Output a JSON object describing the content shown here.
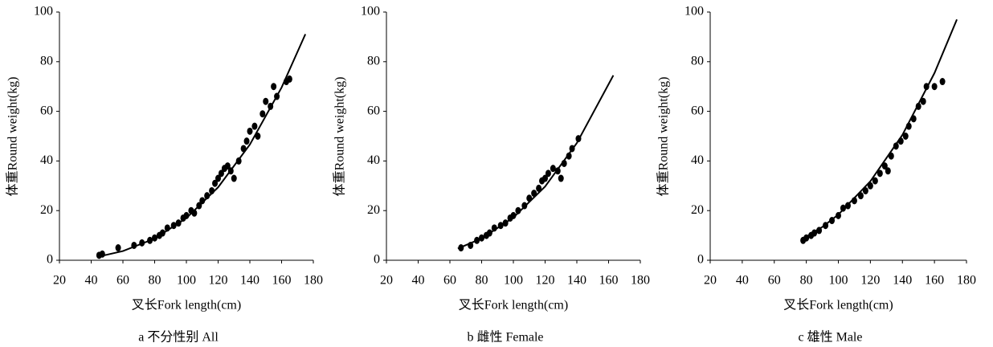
{
  "chart_data": [
    {
      "type": "scatter",
      "title": "a 不分性别 All",
      "xlabel": "叉长Fork length(cm)",
      "ylabel": "体重Round weight(kg)",
      "color": "#000000",
      "xlim": [
        20,
        180
      ],
      "xticks": [
        20,
        40,
        60,
        80,
        100,
        120,
        140,
        160,
        180
      ],
      "ylim": [
        0,
        100
      ],
      "yticks": [
        0,
        20,
        40,
        60,
        80,
        100
      ],
      "points": {
        "x": [
          45,
          47,
          57,
          67,
          72,
          77,
          80,
          83,
          85,
          88,
          92,
          95,
          98,
          100,
          103,
          105,
          108,
          110,
          113,
          116,
          118,
          120,
          122,
          124,
          126,
          128,
          130,
          133,
          136,
          138,
          140,
          143,
          145,
          148,
          150,
          153,
          155,
          157,
          163,
          165
        ],
        "y": [
          2,
          2.5,
          5,
          6,
          7,
          8,
          9,
          10,
          11,
          13,
          14,
          15,
          17,
          18,
          20,
          19,
          22,
          24,
          26,
          28,
          31,
          33,
          35,
          37,
          38,
          36,
          33,
          40,
          45,
          48,
          52,
          54,
          50,
          59,
          64,
          62,
          70,
          66,
          72,
          73
        ]
      },
      "curve": {
        "x": [
          45,
          60,
          80,
          100,
          120,
          140,
          160,
          175
        ],
        "y": [
          1.5,
          3.7,
          8.7,
          17,
          29.4,
          46.6,
          69.6,
          91.1
        ]
      }
    },
    {
      "type": "scatter",
      "title": "b 雌性 Female",
      "xlabel": "叉长Fork length(cm)",
      "ylabel": "体重Round weight(kg)",
      "color": "#000000",
      "xlim": [
        20,
        180
      ],
      "xticks": [
        20,
        40,
        60,
        80,
        100,
        120,
        140,
        160,
        180
      ],
      "ylim": [
        0,
        100
      ],
      "yticks": [
        0,
        20,
        40,
        60,
        80,
        100
      ],
      "points": {
        "x": [
          67,
          73,
          77,
          80,
          83,
          85,
          88,
          92,
          95,
          98,
          100,
          103,
          107,
          110,
          113,
          116,
          118,
          120,
          122,
          125,
          128,
          130,
          132,
          135,
          137,
          141
        ],
        "y": [
          5,
          6,
          8,
          9,
          10,
          11,
          13,
          14,
          15,
          17,
          18,
          20,
          22,
          25,
          27,
          29,
          32,
          33,
          35,
          37,
          36,
          33,
          39,
          42,
          45,
          49
        ]
      },
      "curve": {
        "x": [
          65,
          80,
          100,
          120,
          140,
          163
        ],
        "y": [
          4.7,
          8.8,
          17.2,
          29.7,
          47.2,
          74.5
        ]
      }
    },
    {
      "type": "scatter",
      "title": "c 雄性 Male",
      "xlabel": "叉长Fork length(cm)",
      "ylabel": "体重Round weight(kg)",
      "color": "#000000",
      "xlim": [
        20,
        180
      ],
      "xticks": [
        20,
        40,
        60,
        80,
        100,
        120,
        140,
        160,
        180
      ],
      "ylim": [
        0,
        100
      ],
      "yticks": [
        0,
        20,
        40,
        60,
        80,
        100
      ],
      "points": {
        "x": [
          78,
          80,
          83,
          85,
          88,
          92,
          96,
          100,
          103,
          106,
          110,
          114,
          117,
          120,
          123,
          126,
          129,
          131,
          133,
          136,
          139,
          142,
          144,
          147,
          150,
          153,
          155,
          160,
          165
        ],
        "y": [
          8,
          9,
          10,
          11,
          12,
          14,
          16,
          18,
          21,
          22,
          24,
          26,
          28,
          30,
          32,
          35,
          38,
          36,
          42,
          46,
          48,
          50,
          54,
          57,
          62,
          64,
          70,
          70,
          72
        ]
      },
      "curve": {
        "x": [
          78,
          90,
          100,
          120,
          140,
          160,
          174
        ],
        "y": [
          8.7,
          13.4,
          18.4,
          31.8,
          50.5,
          75.4,
          97
        ]
      }
    }
  ]
}
